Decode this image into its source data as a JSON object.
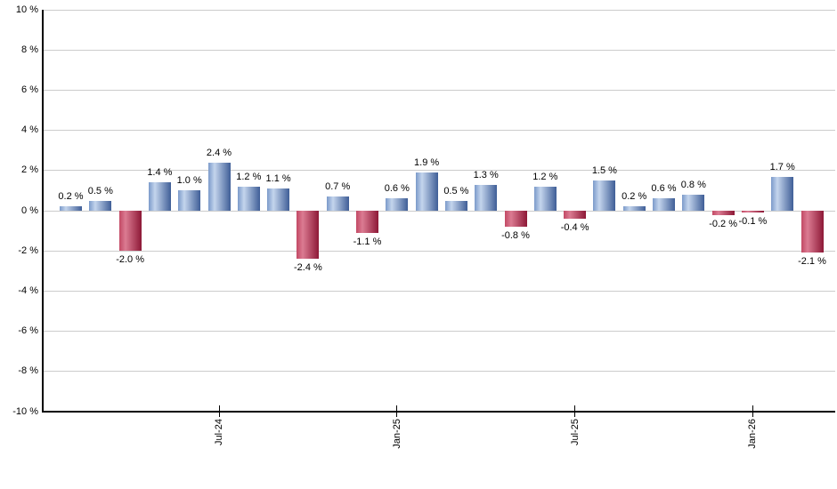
{
  "chart_data": {
    "type": "bar",
    "title": "",
    "xlabel": "",
    "ylabel": "",
    "values": [
      0.2,
      0.5,
      -2.0,
      1.4,
      1.0,
      2.4,
      1.2,
      1.1,
      -2.4,
      0.7,
      -1.1,
      0.6,
      1.9,
      0.5,
      1.3,
      -0.8,
      1.2,
      -0.4,
      1.5,
      0.2,
      0.6,
      0.8,
      -0.2,
      -0.1,
      1.7,
      -2.1
    ],
    "data_labels": [
      "0.2 %",
      "0.5 %",
      "-2.0 %",
      "1.4 %",
      "1.0 %",
      "2.4 %",
      "1.2 %",
      "1.1 %",
      "-2.4 %",
      "0.7 %",
      "-1.1 %",
      "0.6 %",
      "1.9 %",
      "0.5 %",
      "1.3 %",
      "-0.8 %",
      "1.2 %",
      "-0.4 %",
      "1.5 %",
      "0.2 %",
      "0.6 %",
      "0.8 %",
      "-0.2 %",
      "-0.1 %",
      "1.7 %",
      "-2.1 %"
    ],
    "y_axis": {
      "min": -10,
      "max": 10,
      "step": 2,
      "tick_labels": [
        "10 %",
        "8 %",
        "6 %",
        "4 %",
        "2 %",
        "0 %",
        "-2 %",
        "-4 %",
        "-6 %",
        "-8 %",
        "-10 %"
      ]
    },
    "x_axis": {
      "ticks": [
        {
          "label": "Jul-24",
          "bar_index": 5
        },
        {
          "label": "Jan-25",
          "bar_index": 11
        },
        {
          "label": "Jul-25",
          "bar_index": 17
        },
        {
          "label": "Jan-26",
          "bar_index": 23
        }
      ]
    },
    "legend": null,
    "grid": true,
    "colors": {
      "positive_bar_gradient": [
        "#7b9aca",
        "#c4d5ed",
        "#3f5e97"
      ],
      "negative_bar_gradient": [
        "#c24964",
        "#db7b92",
        "#8d1836"
      ],
      "gridline": "#cccccc",
      "axis": "#000000",
      "label_text": "#000000",
      "background": "#ffffff"
    }
  }
}
